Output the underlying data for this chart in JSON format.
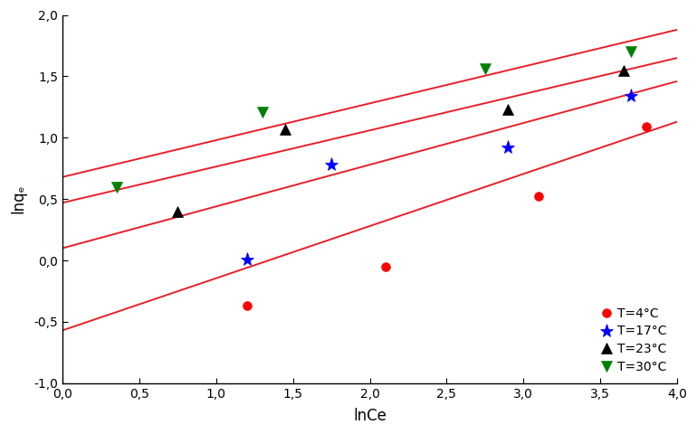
{
  "title": "",
  "xlabel": "lnCe",
  "ylabel": "lnqₑ",
  "xlim": [
    0.0,
    4.0
  ],
  "ylim": [
    -1.0,
    2.0
  ],
  "xticks": [
    0.0,
    0.5,
    1.0,
    1.5,
    2.0,
    2.5,
    3.0,
    3.5,
    4.0
  ],
  "yticks": [
    -1.0,
    -0.5,
    0.0,
    0.5,
    1.0,
    1.5,
    2.0
  ],
  "series": [
    {
      "label": "T=4°C",
      "color": "red",
      "marker": "o",
      "markersize": 7,
      "x": [
        1.2,
        2.1,
        3.1,
        3.8
      ],
      "y": [
        -0.37,
        -0.05,
        0.52,
        1.09
      ],
      "line_slope": 0.425,
      "line_intercept": -0.57
    },
    {
      "label": "T=17°C",
      "color": "blue",
      "marker": "*",
      "markersize": 11,
      "x": [
        1.2,
        1.75,
        2.9,
        3.7
      ],
      "y": [
        0.01,
        0.78,
        0.92,
        1.34
      ],
      "line_slope": 0.34,
      "line_intercept": 0.1
    },
    {
      "label": "T=23°C",
      "color": "black",
      "marker": "^",
      "markersize": 8,
      "x": [
        0.75,
        1.45,
        2.9,
        3.65
      ],
      "y": [
        0.4,
        1.07,
        1.23,
        1.55
      ],
      "line_slope": 0.295,
      "line_intercept": 0.47
    },
    {
      "label": "T=30°C",
      "color": "green",
      "marker": "v",
      "markersize": 8,
      "x": [
        0.35,
        1.3,
        2.75,
        3.7
      ],
      "y": [
        0.6,
        1.21,
        1.56,
        1.7
      ],
      "line_slope": 0.3,
      "line_intercept": 0.68
    }
  ],
  "line_color": "#e8202a",
  "line_width": 1.4,
  "background_color": "#ffffff",
  "figsize": [
    7.7,
    4.8
  ],
  "dpi": 100
}
